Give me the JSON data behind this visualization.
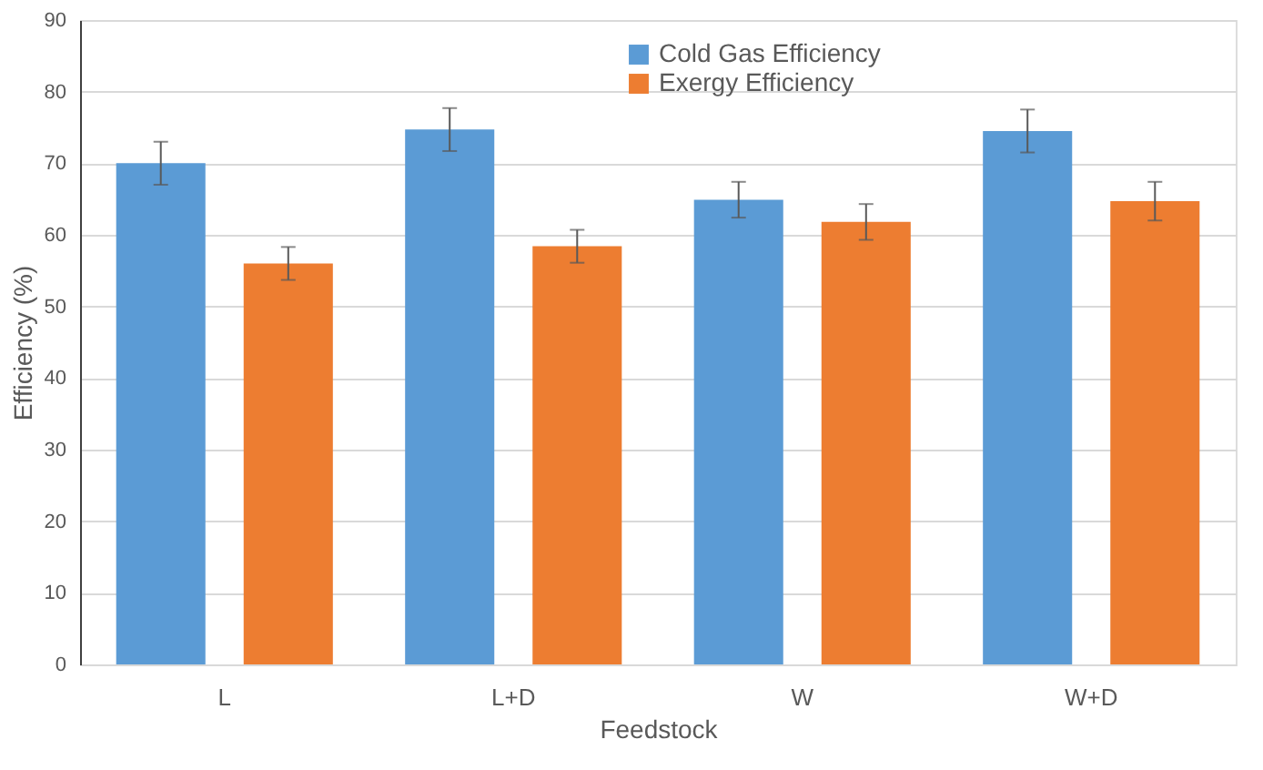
{
  "chart_data": {
    "type": "bar",
    "xlabel": "Feedstock",
    "ylabel": "Efficiency  (%)",
    "categories": [
      "L",
      "L+D",
      "W",
      "W+D"
    ],
    "series": [
      {
        "name": "Cold Gas Efficiency",
        "color": "#5b9bd5",
        "values": [
          70,
          74.7,
          64.9,
          74.5
        ],
        "errors": [
          3,
          3,
          2.5,
          3
        ]
      },
      {
        "name": "Exergy Efficiency",
        "color": "#ed7d31",
        "values": [
          56,
          58.4,
          61.8,
          64.7
        ],
        "errors": [
          2.3,
          2.3,
          2.5,
          2.7
        ]
      }
    ],
    "ylim": [
      0,
      90
    ],
    "yticks": [
      0,
      10,
      20,
      30,
      40,
      50,
      60,
      70,
      80,
      90
    ],
    "grid": "y",
    "legend": "top"
  }
}
